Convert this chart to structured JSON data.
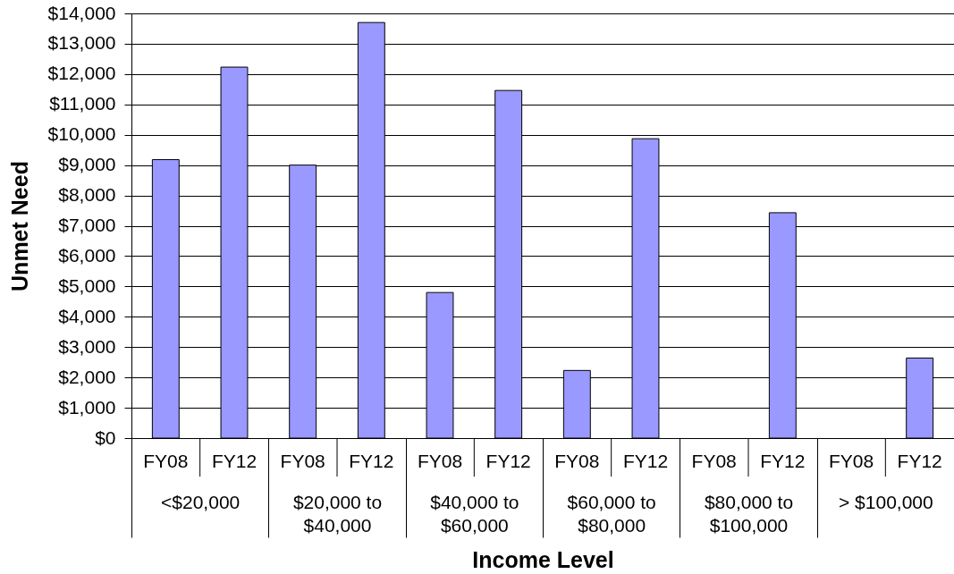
{
  "chart_data": {
    "type": "bar",
    "xlabel": "Income Level",
    "ylabel": "Unmet Need",
    "categories": [
      "<$20,000",
      "$20,000 to $40,000",
      "$40,000 to $60,000",
      "$60,000 to $80,000",
      "$80,000 to $100,000",
      "> $100,000"
    ],
    "series": [
      {
        "name": "FY08",
        "color": "#9999ff",
        "values": [
          9180,
          9000,
          4800,
          2230,
          null,
          null
        ]
      },
      {
        "name": "FY12",
        "color": "#9999ff",
        "values": [
          12230,
          13700,
          11460,
          9870,
          7430,
          2640
        ]
      }
    ],
    "ylim": [
      0,
      14000
    ],
    "yticks": [
      {
        "value": 0,
        "label": "$0"
      },
      {
        "value": 1000,
        "label": "$1,000"
      },
      {
        "value": 2000,
        "label": "$2,000"
      },
      {
        "value": 3000,
        "label": "$3,000"
      },
      {
        "value": 4000,
        "label": "$4,000"
      },
      {
        "value": 5000,
        "label": "$5,000"
      },
      {
        "value": 6000,
        "label": "$6,000"
      },
      {
        "value": 7000,
        "label": "$7,000"
      },
      {
        "value": 8000,
        "label": "$8,000"
      },
      {
        "value": 9000,
        "label": "$9,000"
      },
      {
        "value": 10000,
        "label": "$10,000"
      },
      {
        "value": 11000,
        "label": "$11,000"
      },
      {
        "value": 12000,
        "label": "$12,000"
      },
      {
        "value": 13000,
        "label": "$13,000"
      },
      {
        "value": 14000,
        "label": "$14,000"
      }
    ],
    "grid": "y"
  }
}
